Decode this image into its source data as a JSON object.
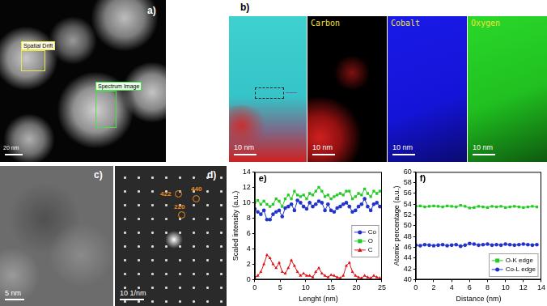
{
  "figure": {
    "panel_a": {
      "label": "a)",
      "boxes": [
        "Spatial Drift",
        "Spectrum Image"
      ],
      "scale_bar": "20 nm"
    },
    "panel_b": {
      "label": "b)",
      "maps": [
        "Carbon",
        "Cobalt",
        "Oxygen"
      ],
      "scale_bar": "10 nm"
    },
    "panel_c": {
      "label": "c)",
      "scale_bar": "5 nm"
    },
    "panel_d": {
      "label": "d)",
      "spots": [
        "422",
        "440",
        "220"
      ],
      "scale_bar": "10 1/nm"
    }
  },
  "chart_data": [
    {
      "type": "line",
      "panel_label": "e)",
      "x_label": "Lenght (nm)",
      "y_label": "Scaled intensity (a.u.)",
      "x": [
        0,
        0.6,
        1.2,
        1.8,
        2.4,
        3,
        3.6,
        4.2,
        4.8,
        5.4,
        6,
        6.6,
        7.2,
        7.8,
        8.4,
        9,
        9.6,
        10.2,
        10.8,
        11.4,
        12,
        12.6,
        13.2,
        13.8,
        14.4,
        15,
        15.6,
        16.2,
        16.8,
        17.4,
        18,
        18.6,
        19.2,
        19.8,
        20.4,
        21,
        21.6,
        22.2,
        22.8,
        23.4,
        24,
        24.6
      ],
      "series": [
        {
          "name": "Co",
          "color": "#2233cc",
          "marker": "circle",
          "line_style": "solid",
          "values": [
            9.2,
            8.8,
            8.5,
            9.0,
            7.8,
            7.8,
            8.5,
            8.8,
            9.0,
            8.2,
            9.3,
            9.5,
            9.8,
            9.0,
            10.3,
            10.0,
            9.5,
            9.2,
            10.0,
            9.5,
            9.8,
            10.2,
            10.0,
            9.0,
            9.8,
            9.0,
            8.8,
            9.3,
            9.5,
            9.8,
            10.0,
            9.5,
            8.8,
            9.0,
            9.5,
            9.8,
            10.5,
            9.5,
            9.0,
            9.8,
            10.0,
            9.5
          ]
        },
        {
          "name": "O",
          "color": "#22cc22",
          "marker": "square",
          "line_style": "solid",
          "values": [
            10,
            10.3,
            9.8,
            10.2,
            9.8,
            9.5,
            9.8,
            10.5,
            10.2,
            9.5,
            10.5,
            11.0,
            10.5,
            11.5,
            11.0,
            10.8,
            11.0,
            10.5,
            11.2,
            11.0,
            11.5,
            12.0,
            11.5,
            10.8,
            11.0,
            10.5,
            10.8,
            11.0,
            11.2,
            11.0,
            11.5,
            11.5,
            10.5,
            10.8,
            11.2,
            11.0,
            11.8,
            11.2,
            10.8,
            11.5,
            11.2,
            11.5
          ]
        },
        {
          "name": "C",
          "color": "#dd1111",
          "marker": "triangle",
          "line_style": "solid",
          "values": [
            0.3,
            0.5,
            1.0,
            2.0,
            3.2,
            2.8,
            2.0,
            1.5,
            2.2,
            1.0,
            0.8,
            1.5,
            2.5,
            1.8,
            1.0,
            0.5,
            0.8,
            0.5,
            0.5,
            0.3,
            1.0,
            1.5,
            0.8,
            0.5,
            0.3,
            0.6,
            0.5,
            0.3,
            0.2,
            0.5,
            1.8,
            2.2,
            1.0,
            0.5,
            0.3,
            0.2,
            0.5,
            0.3,
            0.2,
            0.5,
            0.3,
            0.2
          ]
        }
      ],
      "xlim": [
        0,
        25
      ],
      "xticks": [
        0,
        5,
        10,
        15,
        20,
        25
      ],
      "ylim": [
        0,
        14
      ],
      "yticks": [
        0,
        2,
        4,
        6,
        8,
        10,
        12,
        14
      ],
      "grid": false,
      "legend": "lower right"
    },
    {
      "type": "line",
      "panel_label": "f)",
      "x_label": "Distance (nm)",
      "y_label": "Atomic percentage (a.u.)",
      "x": [
        0,
        0.5,
        1,
        1.5,
        2,
        2.5,
        3,
        3.5,
        4,
        4.5,
        5,
        5.5,
        6,
        6.5,
        7,
        7.5,
        8,
        8.5,
        9,
        9.5,
        10,
        10.5,
        11,
        11.5,
        12,
        12.5,
        13,
        13.5
      ],
      "series": [
        {
          "name": "O-K edge",
          "color": "#22cc22",
          "marker": "square",
          "line_style": "solid",
          "values": [
            53.6,
            53.7,
            53.5,
            53.6,
            53.7,
            53.6,
            53.5,
            53.7,
            53.6,
            53.5,
            53.8,
            53.6,
            53.3,
            53.4,
            53.6,
            53.5,
            53.4,
            53.6,
            53.5,
            53.6,
            53.4,
            53.5,
            53.6,
            53.5,
            53.4,
            53.5,
            53.6,
            53.5
          ]
        },
        {
          "name": "Co-L edge",
          "color": "#2233cc",
          "marker": "circle",
          "line_style": "solid",
          "values": [
            46.4,
            46.3,
            46.5,
            46.4,
            46.3,
            46.4,
            46.5,
            46.3,
            46.4,
            46.5,
            46.2,
            46.4,
            46.7,
            46.6,
            46.4,
            46.5,
            46.6,
            46.4,
            46.5,
            46.4,
            46.6,
            46.5,
            46.4,
            46.5,
            46.6,
            46.5,
            46.4,
            46.5
          ]
        }
      ],
      "xlim": [
        0,
        14
      ],
      "xticks": [
        0,
        2,
        4,
        6,
        8,
        10,
        12,
        14
      ],
      "ylim": [
        40,
        60
      ],
      "yticks": [
        40,
        42,
        44,
        46,
        48,
        50,
        52,
        54,
        56,
        58,
        60
      ],
      "grid": false,
      "legend": "lower right"
    }
  ]
}
